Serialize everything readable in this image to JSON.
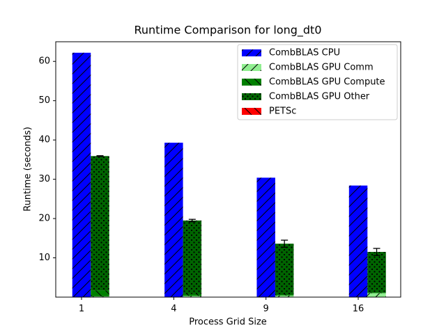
{
  "chart_data": {
    "type": "stacked-bar",
    "title": "Runtime Comparison for long_dt0",
    "x_label": "Process Grid Size",
    "y_label": "Runtime (seconds)",
    "categories": [
      "1",
      "4",
      "9",
      "16"
    ],
    "series": [
      {
        "name": "CombBLAS CPU",
        "color": "#0000ff",
        "hatch": "/",
        "stack": 0,
        "values": [
          62.2,
          39.3,
          30.4,
          28.4
        ]
      },
      {
        "name": "CombBLAS GPU Comm",
        "color": "#90ee90",
        "hatch": "/",
        "stack": 1,
        "values": [
          0.2,
          0.3,
          0.4,
          1.0
        ]
      },
      {
        "name": "CombBLAS GPU Compute",
        "color": "#008000",
        "hatch": "\\",
        "stack": 1,
        "values": [
          1.5,
          0.5,
          0.3,
          0.2
        ]
      },
      {
        "name": "CombBLAS GPU Other",
        "color": "#006400",
        "hatch": ".",
        "stack": 1,
        "values": [
          34.2,
          18.7,
          12.9,
          10.3
        ],
        "errors": [
          0.1,
          0.3,
          0.9,
          0.9
        ]
      },
      {
        "name": "PETSc",
        "color": "#ff0000",
        "hatch": "\\",
        "stack": 2,
        "values": [
          null,
          null,
          null,
          null
        ]
      }
    ],
    "ylim": [
      0,
      65
    ],
    "yticks": [
      10,
      20,
      30,
      40,
      50,
      60
    ],
    "legend": "upper right"
  }
}
